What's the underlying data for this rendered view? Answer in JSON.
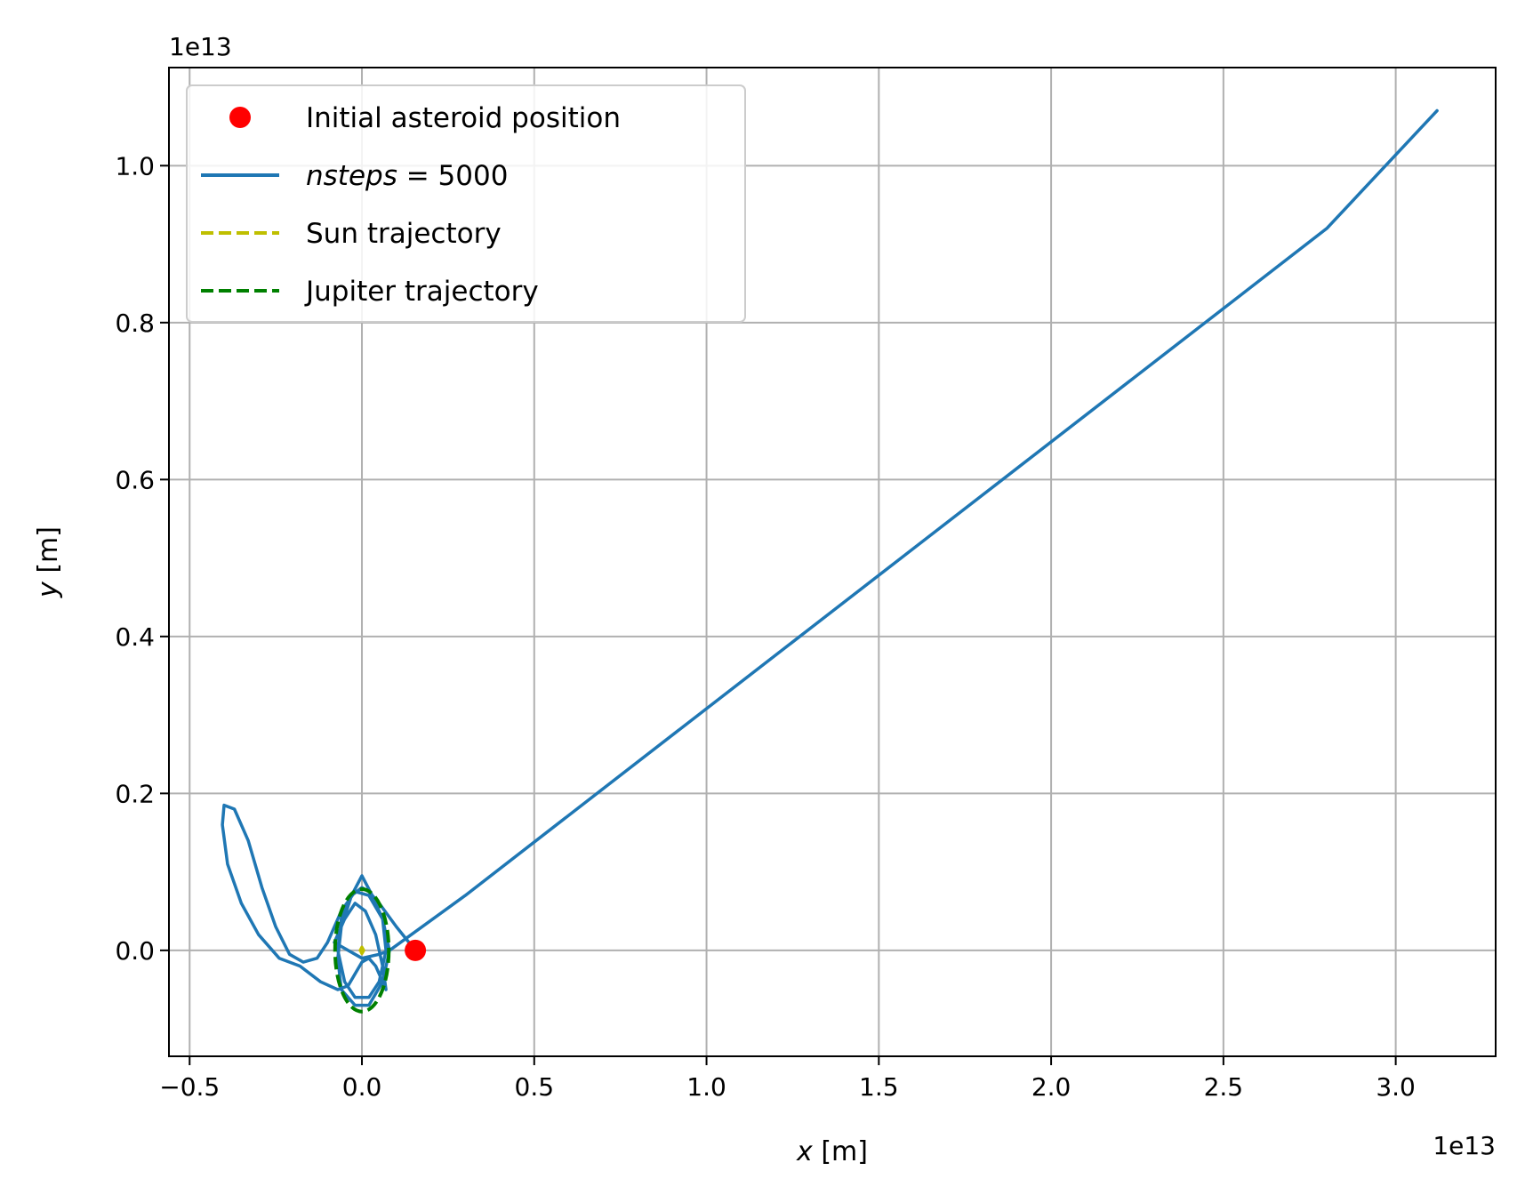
{
  "chart_data": {
    "type": "line",
    "xlabel": "x [m]",
    "ylabel": "y [m]",
    "x_offset_label": "1e13",
    "y_offset_label": "1e13",
    "xlim": [
      -0.56,
      3.29
    ],
    "ylim": [
      -0.135,
      1.125
    ],
    "x_ticks": [
      {
        "value": -0.5,
        "label": "−0.5"
      },
      {
        "value": 0.0,
        "label": "0.0"
      },
      {
        "value": 0.5,
        "label": "0.5"
      },
      {
        "value": 1.0,
        "label": "1.0"
      },
      {
        "value": 1.5,
        "label": "1.5"
      },
      {
        "value": 2.0,
        "label": "2.0"
      },
      {
        "value": 2.5,
        "label": "2.5"
      },
      {
        "value": 3.0,
        "label": "3.0"
      }
    ],
    "y_ticks": [
      {
        "value": 0.0,
        "label": "0.0"
      },
      {
        "value": 0.2,
        "label": "0.2"
      },
      {
        "value": 0.4,
        "label": "0.4"
      },
      {
        "value": 0.6,
        "label": "0.6"
      },
      {
        "value": 0.8,
        "label": "0.8"
      },
      {
        "value": 1.0,
        "label": "1.0"
      }
    ],
    "grid": true,
    "legend_position": "upper-left",
    "legend": [
      {
        "kind": "marker",
        "label_prefix": "",
        "label_italic": "",
        "label": "Initial asteroid position",
        "color": "#ff0000"
      },
      {
        "kind": "solid",
        "label_prefix": "",
        "label_italic": "nsteps",
        "label": " = 5000",
        "color": "#1f77b4"
      },
      {
        "kind": "dashed",
        "label_prefix": "",
        "label_italic": "",
        "label": "Sun trajectory",
        "color": "#bfbf00"
      },
      {
        "kind": "dashed",
        "label_prefix": "",
        "label_italic": "",
        "label": "Jupiter trajectory",
        "color": "#008000"
      }
    ],
    "series": [
      {
        "name": "Initial asteroid position",
        "style": "marker",
        "color": "#ff0000",
        "x": [
          0.155
        ],
        "y": [
          0.0
        ]
      },
      {
        "name": "nsteps = 5000",
        "style": "solid",
        "color": "#1f77b4",
        "x": [
          0.155,
          0.1,
          0.05,
          0.02,
          0.0,
          -0.03,
          -0.06,
          -0.07,
          -0.05,
          -0.02,
          0.02,
          0.05,
          0.07,
          0.06,
          0.03,
          0.0,
          -0.03,
          -0.06,
          -0.07,
          -0.06,
          -0.02,
          0.02,
          0.06,
          0.08,
          0.06,
          0.02,
          -0.02,
          -0.06,
          -0.08,
          -0.1,
          -0.13,
          -0.17,
          -0.21,
          -0.25,
          -0.29,
          -0.33,
          -0.37,
          -0.4,
          -0.405,
          -0.39,
          -0.35,
          -0.3,
          -0.24,
          -0.18,
          -0.12,
          -0.07,
          -0.04,
          -0.02,
          0.0,
          0.02,
          0.04,
          0.06,
          0.07,
          0.06,
          0.04,
          0.01,
          -0.02,
          -0.05,
          -0.08,
          0.0,
          0.05,
          0.08,
          0.3,
          0.8,
          1.3,
          1.8,
          2.3,
          2.8,
          3.12
        ],
        "y": [
          0.0,
          0.03,
          0.06,
          0.075,
          0.08,
          0.07,
          0.04,
          0.0,
          -0.04,
          -0.06,
          -0.06,
          -0.04,
          0.0,
          0.04,
          0.07,
          0.095,
          0.07,
          0.03,
          -0.01,
          -0.05,
          -0.07,
          -0.07,
          -0.04,
          0.0,
          0.04,
          0.07,
          0.075,
          0.05,
          0.03,
          0.01,
          -0.01,
          -0.015,
          -0.005,
          0.03,
          0.08,
          0.14,
          0.18,
          0.185,
          0.16,
          0.11,
          0.06,
          0.02,
          -0.01,
          -0.02,
          -0.04,
          -0.05,
          -0.045,
          -0.03,
          -0.015,
          -0.01,
          -0.02,
          -0.04,
          -0.05,
          -0.02,
          0.02,
          0.05,
          0.06,
          0.04,
          0.01,
          -0.01,
          -0.005,
          0.0,
          0.07,
          0.24,
          0.41,
          0.58,
          0.75,
          0.92,
          1.07
        ]
      },
      {
        "name": "Sun trajectory",
        "style": "dashed",
        "color": "#bfbf00",
        "x": [
          -0.005,
          0.0,
          0.005,
          0.0,
          -0.005
        ],
        "y": [
          0.0,
          0.004,
          0.0,
          -0.004,
          0.0
        ]
      },
      {
        "name": "Jupiter trajectory",
        "style": "dashed",
        "color": "#008000",
        "ellipse": {
          "cx": 0.0,
          "cy": 0.0,
          "rx": 0.078,
          "ry": 0.078
        }
      }
    ]
  }
}
